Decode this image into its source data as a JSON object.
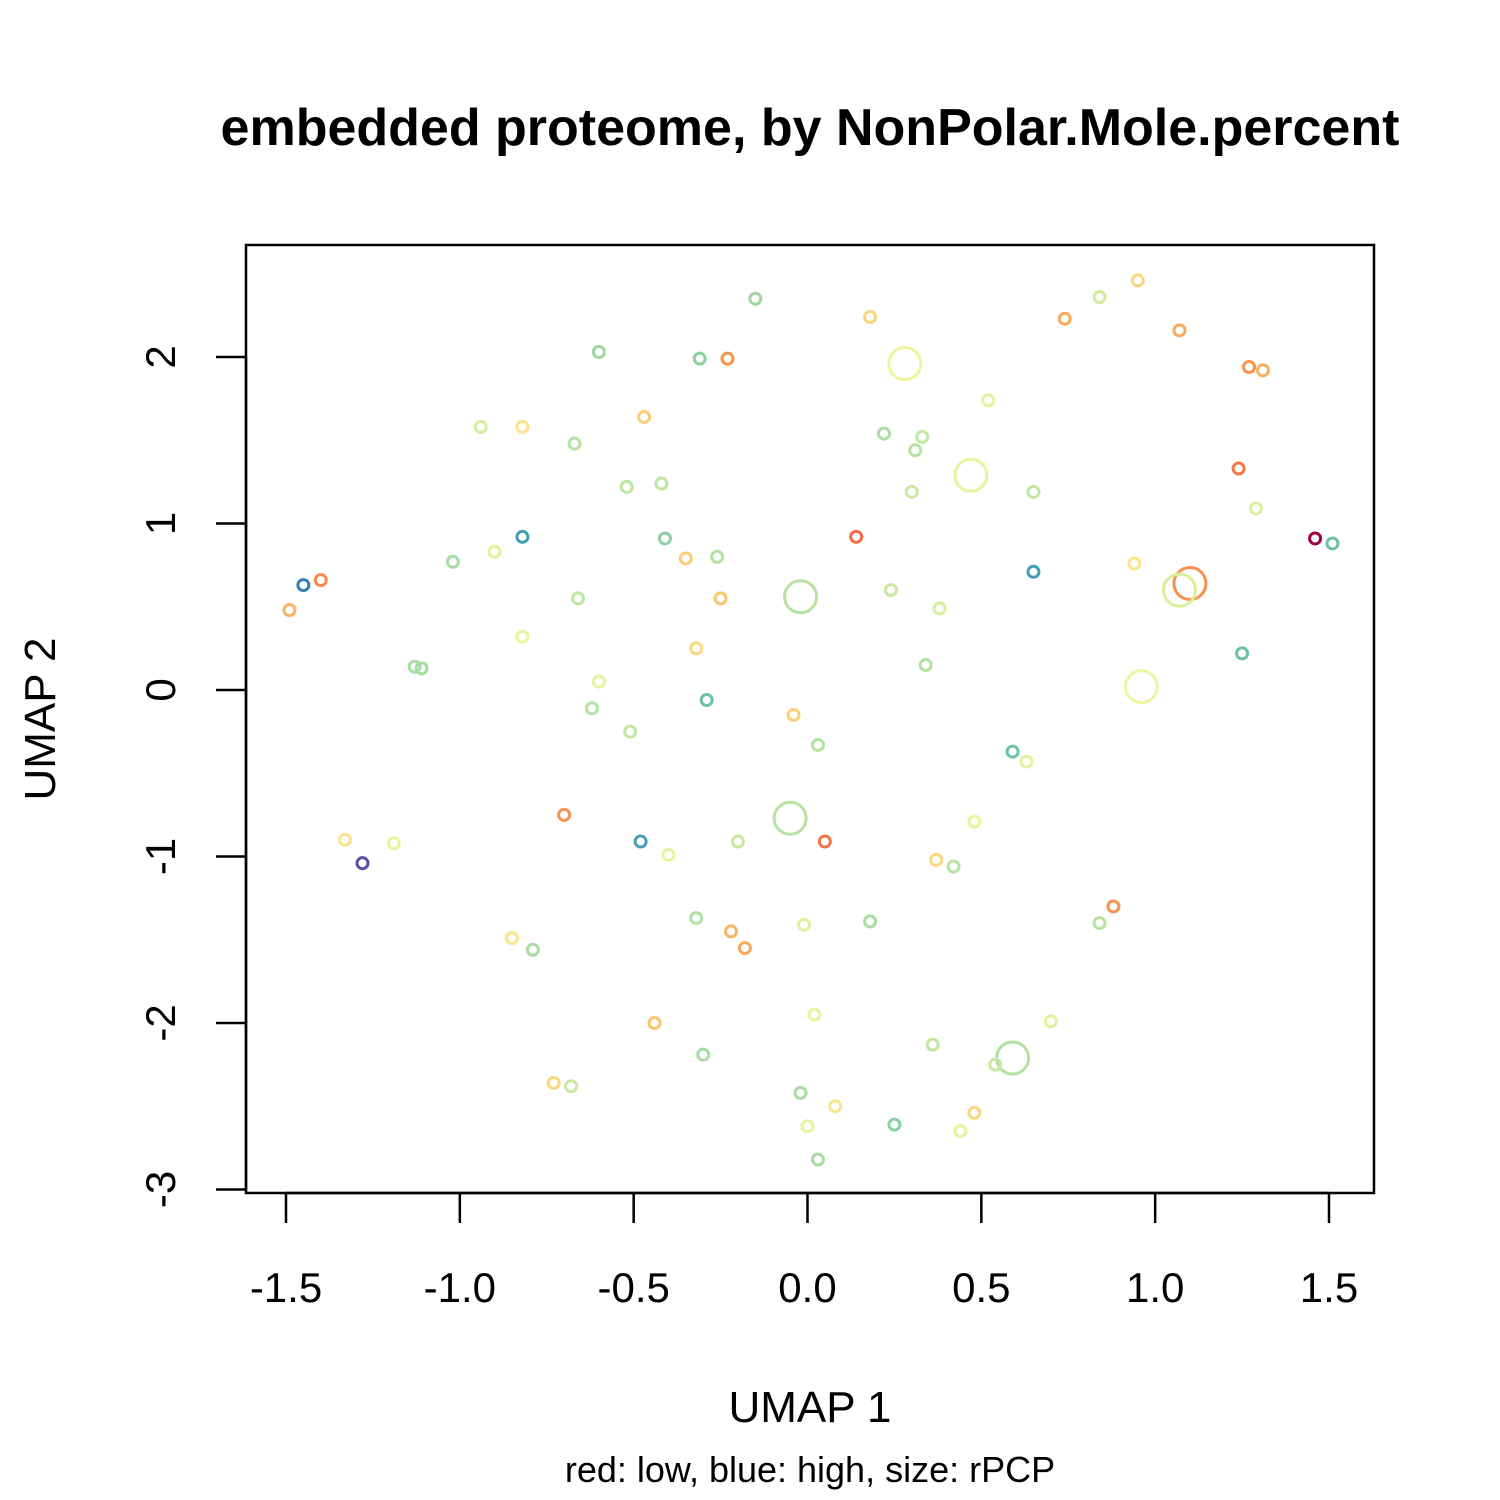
{
  "chart_data": {
    "type": "scatter",
    "title": "embedded proteome, by NonPolar.Mole.percent",
    "xlabel": "UMAP 1",
    "ylabel": "UMAP 2",
    "subtitle": "red: low, blue: high, size: rPCP",
    "xlim": [
      -1.6,
      1.6
    ],
    "ylim": [
      -3.0,
      2.7
    ],
    "grid": false,
    "xticks": [
      -1.5,
      -1.0,
      -0.5,
      0.0,
      0.5,
      1.0,
      1.5
    ],
    "xtick_labels": [
      "-1.5",
      "-1.0",
      "-0.5",
      "0.0",
      "0.5",
      "1.0",
      "1.5"
    ],
    "yticks": [
      -3,
      -2,
      -1,
      0,
      1,
      2
    ],
    "ytick_labels": [
      "-3",
      "-2",
      "-1",
      "0",
      "1",
      "2"
    ],
    "points": [
      {
        "x": -0.15,
        "y": 2.35,
        "color": "#9fd89e",
        "size": 1
      },
      {
        "x": -0.6,
        "y": 2.03,
        "color": "#9fd89e",
        "size": 1
      },
      {
        "x": -0.31,
        "y": 1.99,
        "color": "#8ed1a0",
        "size": 1
      },
      {
        "x": -0.23,
        "y": 1.99,
        "color": "#f7954e",
        "size": 1
      },
      {
        "x": 0.18,
        "y": 2.24,
        "color": "#fbd77e",
        "size": 1
      },
      {
        "x": 0.74,
        "y": 2.23,
        "color": "#f9a85c",
        "size": 1
      },
      {
        "x": 0.84,
        "y": 2.36,
        "color": "#cfec9a",
        "size": 1
      },
      {
        "x": 0.95,
        "y": 2.46,
        "color": "#fbd77e",
        "size": 1
      },
      {
        "x": 1.07,
        "y": 2.16,
        "color": "#f9a85c",
        "size": 1
      },
      {
        "x": 0.28,
        "y": 1.96,
        "color": "#eef59e",
        "size": 3
      },
      {
        "x": 1.27,
        "y": 1.94,
        "color": "#f8924f",
        "size": 1
      },
      {
        "x": 1.31,
        "y": 1.92,
        "color": "#f9b066",
        "size": 1
      },
      {
        "x": -0.94,
        "y": 1.58,
        "color": "#d5ee9b",
        "size": 1
      },
      {
        "x": -0.82,
        "y": 1.58,
        "color": "#fbe48c",
        "size": 1
      },
      {
        "x": -0.47,
        "y": 1.64,
        "color": "#fbce76",
        "size": 1
      },
      {
        "x": -0.67,
        "y": 1.48,
        "color": "#b7e3a0",
        "size": 1
      },
      {
        "x": 0.52,
        "y": 1.74,
        "color": "#e6f49d",
        "size": 1
      },
      {
        "x": 0.22,
        "y": 1.54,
        "color": "#a8dda3",
        "size": 1
      },
      {
        "x": 0.33,
        "y": 1.52,
        "color": "#c2e89f",
        "size": 1
      },
      {
        "x": 0.31,
        "y": 1.44,
        "color": "#b7e3a0",
        "size": 1
      },
      {
        "x": -0.52,
        "y": 1.22,
        "color": "#bde6a0",
        "size": 1
      },
      {
        "x": -0.42,
        "y": 1.24,
        "color": "#bde6a0",
        "size": 1
      },
      {
        "x": 0.47,
        "y": 1.29,
        "color": "#e6f49d",
        "size": 3
      },
      {
        "x": 0.3,
        "y": 1.19,
        "color": "#c9ea9e",
        "size": 1
      },
      {
        "x": 0.65,
        "y": 1.19,
        "color": "#c2e89f",
        "size": 1
      },
      {
        "x": 1.24,
        "y": 1.33,
        "color": "#f57748",
        "size": 1
      },
      {
        "x": 1.29,
        "y": 1.09,
        "color": "#d9f09c",
        "size": 1
      },
      {
        "x": 0.14,
        "y": 0.92,
        "color": "#f46d43",
        "size": 1
      },
      {
        "x": -0.82,
        "y": 0.92,
        "color": "#3f9fb2",
        "size": 1
      },
      {
        "x": -0.41,
        "y": 0.91,
        "color": "#8bd0a2",
        "size": 1
      },
      {
        "x": -0.26,
        "y": 0.8,
        "color": "#b2e2a1",
        "size": 1
      },
      {
        "x": -0.35,
        "y": 0.79,
        "color": "#fbcc73",
        "size": 1
      },
      {
        "x": -0.9,
        "y": 0.83,
        "color": "#e0f29c",
        "size": 1
      },
      {
        "x": -1.02,
        "y": 0.77,
        "color": "#a7dca3",
        "size": 1
      },
      {
        "x": -1.45,
        "y": 0.63,
        "color": "#3a7db9",
        "size": 1
      },
      {
        "x": -1.4,
        "y": 0.66,
        "color": "#f8884d",
        "size": 1
      },
      {
        "x": -1.49,
        "y": 0.48,
        "color": "#fbb266",
        "size": 1
      },
      {
        "x": 0.65,
        "y": 0.71,
        "color": "#3f9fb2",
        "size": 1
      },
      {
        "x": 1.46,
        "y": 0.91,
        "color": "#9e0142",
        "size": 1
      },
      {
        "x": 1.51,
        "y": 0.88,
        "color": "#6cc1a5",
        "size": 1
      },
      {
        "x": 0.94,
        "y": 0.76,
        "color": "#fbe48c",
        "size": 1
      },
      {
        "x": 1.1,
        "y": 0.64,
        "color": "#f8914e",
        "size": 3
      },
      {
        "x": 1.07,
        "y": 0.6,
        "color": "#d9f09c",
        "size": 3
      },
      {
        "x": -0.25,
        "y": 0.55,
        "color": "#fbc56e",
        "size": 1
      },
      {
        "x": -0.66,
        "y": 0.55,
        "color": "#bde6a0",
        "size": 1
      },
      {
        "x": -0.02,
        "y": 0.56,
        "color": "#b7e3a0",
        "size": 3
      },
      {
        "x": 0.24,
        "y": 0.6,
        "color": "#c9ea9e",
        "size": 1
      },
      {
        "x": 0.38,
        "y": 0.49,
        "color": "#d9f09c",
        "size": 1
      },
      {
        "x": -0.82,
        "y": 0.32,
        "color": "#ecf59e",
        "size": 1
      },
      {
        "x": -0.32,
        "y": 0.25,
        "color": "#fbd77e",
        "size": 1
      },
      {
        "x": -1.13,
        "y": 0.14,
        "color": "#a7dca3",
        "size": 1
      },
      {
        "x": -1.11,
        "y": 0.13,
        "color": "#a7dca3",
        "size": 1
      },
      {
        "x": 0.34,
        "y": 0.15,
        "color": "#b2e2a1",
        "size": 1
      },
      {
        "x": 1.25,
        "y": 0.22,
        "color": "#6cc1a5",
        "size": 1
      },
      {
        "x": 0.96,
        "y": 0.02,
        "color": "#eef59e",
        "size": 3
      },
      {
        "x": -0.6,
        "y": 0.05,
        "color": "#e6f49d",
        "size": 1
      },
      {
        "x": -0.62,
        "y": -0.11,
        "color": "#b2e2a1",
        "size": 1
      },
      {
        "x": -0.29,
        "y": -0.06,
        "color": "#6cc1a5",
        "size": 1
      },
      {
        "x": -0.04,
        "y": -0.15,
        "color": "#fbd27a",
        "size": 1
      },
      {
        "x": 0.03,
        "y": -0.33,
        "color": "#b2e2a1",
        "size": 1
      },
      {
        "x": -0.51,
        "y": -0.25,
        "color": "#c2e89f",
        "size": 1
      },
      {
        "x": 0.59,
        "y": -0.37,
        "color": "#6cc1a5",
        "size": 1
      },
      {
        "x": 0.63,
        "y": -0.43,
        "color": "#e0f29c",
        "size": 1
      },
      {
        "x": -0.7,
        "y": -0.75,
        "color": "#f8924f",
        "size": 1
      },
      {
        "x": -0.05,
        "y": -0.77,
        "color": "#b7e3a0",
        "size": 3
      },
      {
        "x": 0.48,
        "y": -0.79,
        "color": "#e6f49d",
        "size": 1
      },
      {
        "x": -1.33,
        "y": -0.9,
        "color": "#fbe48c",
        "size": 1
      },
      {
        "x": -1.19,
        "y": -0.92,
        "color": "#e6f49d",
        "size": 1
      },
      {
        "x": -0.48,
        "y": -0.91,
        "color": "#4a9db4",
        "size": 1
      },
      {
        "x": -0.4,
        "y": -0.99,
        "color": "#e6f49d",
        "size": 1
      },
      {
        "x": -0.2,
        "y": -0.91,
        "color": "#c9ea9e",
        "size": 1
      },
      {
        "x": 0.05,
        "y": -0.91,
        "color": "#f57748",
        "size": 1
      },
      {
        "x": 0.37,
        "y": -1.02,
        "color": "#fbd77e",
        "size": 1
      },
      {
        "x": 0.42,
        "y": -1.06,
        "color": "#b7e3a0",
        "size": 1
      },
      {
        "x": -1.28,
        "y": -1.04,
        "color": "#5e4fa2",
        "size": 1
      },
      {
        "x": 0.88,
        "y": -1.3,
        "color": "#f8924f",
        "size": 1
      },
      {
        "x": 0.84,
        "y": -1.4,
        "color": "#b7e3a0",
        "size": 1
      },
      {
        "x": -0.32,
        "y": -1.37,
        "color": "#b2e2a1",
        "size": 1
      },
      {
        "x": 0.18,
        "y": -1.39,
        "color": "#a7dca3",
        "size": 1
      },
      {
        "x": -0.01,
        "y": -1.41,
        "color": "#e0f29c",
        "size": 1
      },
      {
        "x": -0.22,
        "y": -1.45,
        "color": "#fbb467",
        "size": 1
      },
      {
        "x": -0.18,
        "y": -1.55,
        "color": "#f9a85c",
        "size": 1
      },
      {
        "x": -0.85,
        "y": -1.49,
        "color": "#fbe48c",
        "size": 1
      },
      {
        "x": -0.79,
        "y": -1.56,
        "color": "#a7dca3",
        "size": 1
      },
      {
        "x": -0.44,
        "y": -2.0,
        "color": "#fbc56e",
        "size": 1
      },
      {
        "x": 0.02,
        "y": -1.95,
        "color": "#e6f49d",
        "size": 1
      },
      {
        "x": 0.7,
        "y": -1.99,
        "color": "#e0f29c",
        "size": 1
      },
      {
        "x": -0.3,
        "y": -2.19,
        "color": "#a7dca3",
        "size": 1
      },
      {
        "x": 0.36,
        "y": -2.13,
        "color": "#c2e89f",
        "size": 1
      },
      {
        "x": 0.59,
        "y": -2.21,
        "color": "#b2e2a1",
        "size": 3
      },
      {
        "x": 0.54,
        "y": -2.25,
        "color": "#c9ea9e",
        "size": 1
      },
      {
        "x": -0.73,
        "y": -2.36,
        "color": "#fbd77e",
        "size": 1
      },
      {
        "x": -0.68,
        "y": -2.38,
        "color": "#c9ea9e",
        "size": 1
      },
      {
        "x": -0.02,
        "y": -2.42,
        "color": "#a7dca3",
        "size": 1
      },
      {
        "x": 0.08,
        "y": -2.5,
        "color": "#fbe48c",
        "size": 1
      },
      {
        "x": 0.48,
        "y": -2.54,
        "color": "#fbd77e",
        "size": 1
      },
      {
        "x": 0.0,
        "y": -2.62,
        "color": "#e6f49d",
        "size": 1
      },
      {
        "x": 0.25,
        "y": -2.61,
        "color": "#8bd0a2",
        "size": 1
      },
      {
        "x": 0.44,
        "y": -2.65,
        "color": "#e6f49d",
        "size": 1
      },
      {
        "x": 0.03,
        "y": -2.82,
        "color": "#a7dca3",
        "size": 1
      }
    ]
  }
}
